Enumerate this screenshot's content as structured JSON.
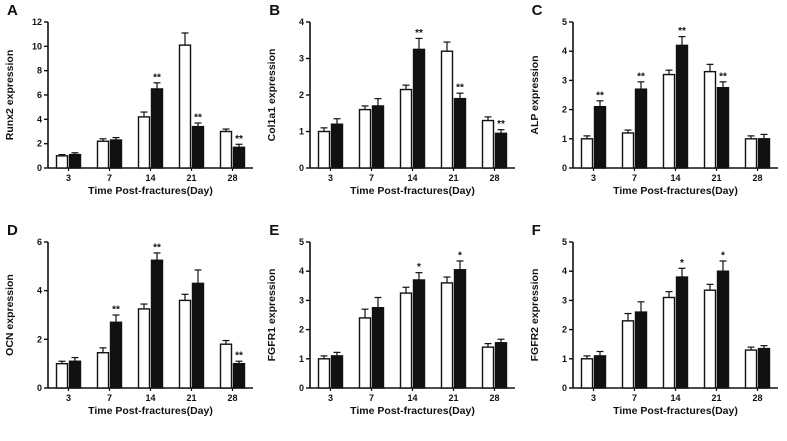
{
  "figure_meta": {
    "background": "#ffffff",
    "bar_fill_open": "#ffffff",
    "bar_fill_solid": "#111111",
    "axis_color": "#111111"
  },
  "chart_data": [
    {
      "type": "bar",
      "panel": "A",
      "ylabel": "Runx2 expression",
      "xlabel": "Time Post-fractures(Day)",
      "categories": [
        "3",
        "7",
        "14",
        "21",
        "28"
      ],
      "ylim": [
        0,
        12
      ],
      "yticks": [
        0,
        2,
        4,
        6,
        8,
        10,
        12
      ],
      "grid": false,
      "legend": "none",
      "series": [
        {
          "name": "open-bar",
          "fill": "#ffffff",
          "values": [
            1.0,
            2.2,
            4.2,
            10.1,
            3.0
          ],
          "errors": [
            0.1,
            0.2,
            0.4,
            1.0,
            0.2
          ],
          "sig": [
            "",
            "",
            "",
            "",
            ""
          ]
        },
        {
          "name": "solid-bar",
          "fill": "#111111",
          "values": [
            1.1,
            2.3,
            6.5,
            3.4,
            1.7
          ],
          "errors": [
            0.15,
            0.2,
            0.5,
            0.3,
            0.25
          ],
          "sig": [
            "",
            "",
            "**",
            "**",
            "**"
          ]
        }
      ]
    },
    {
      "type": "bar",
      "panel": "B",
      "ylabel": "Col1a1 expression",
      "xlabel": "Time Post-fractures(Day)",
      "categories": [
        "3",
        "7",
        "14",
        "21",
        "28"
      ],
      "ylim": [
        0,
        4
      ],
      "yticks": [
        0,
        1,
        2,
        3,
        4
      ],
      "grid": false,
      "legend": "none",
      "series": [
        {
          "name": "open-bar",
          "fill": "#ffffff",
          "values": [
            1.0,
            1.6,
            2.15,
            3.2,
            1.3
          ],
          "errors": [
            0.1,
            0.1,
            0.12,
            0.25,
            0.1
          ],
          "sig": [
            "",
            "",
            "",
            "",
            ""
          ]
        },
        {
          "name": "solid-bar",
          "fill": "#111111",
          "values": [
            1.2,
            1.7,
            3.25,
            1.9,
            0.95
          ],
          "errors": [
            0.15,
            0.2,
            0.3,
            0.15,
            0.1
          ],
          "sig": [
            "",
            "",
            "**",
            "**",
            "**"
          ]
        }
      ]
    },
    {
      "type": "bar",
      "panel": "C",
      "ylabel": "ALP expression",
      "xlabel": "Time Post-fractures(Day)",
      "categories": [
        "3",
        "7",
        "14",
        "21",
        "28"
      ],
      "ylim": [
        0,
        5
      ],
      "yticks": [
        0,
        1,
        2,
        3,
        4,
        5
      ],
      "grid": false,
      "legend": "none",
      "series": [
        {
          "name": "open-bar",
          "fill": "#ffffff",
          "values": [
            1.0,
            1.2,
            3.2,
            3.3,
            1.0
          ],
          "errors": [
            0.1,
            0.1,
            0.15,
            0.25,
            0.1
          ],
          "sig": [
            "",
            "",
            "",
            "",
            ""
          ]
        },
        {
          "name": "solid-bar",
          "fill": "#111111",
          "values": [
            2.1,
            2.7,
            4.2,
            2.75,
            1.0
          ],
          "errors": [
            0.2,
            0.25,
            0.3,
            0.2,
            0.15
          ],
          "sig": [
            "**",
            "**",
            "**",
            "**",
            ""
          ]
        }
      ]
    },
    {
      "type": "bar",
      "panel": "D",
      "ylabel": "OCN expression",
      "xlabel": "Time Post-fractures(Day)",
      "categories": [
        "3",
        "7",
        "14",
        "21",
        "28"
      ],
      "ylim": [
        0,
        6
      ],
      "yticks": [
        0,
        2,
        4,
        6
      ],
      "grid": false,
      "legend": "none",
      "series": [
        {
          "name": "open-bar",
          "fill": "#ffffff",
          "values": [
            1.0,
            1.45,
            3.25,
            3.6,
            1.8
          ],
          "errors": [
            0.1,
            0.2,
            0.2,
            0.25,
            0.15
          ],
          "sig": [
            "",
            "",
            "",
            "",
            ""
          ]
        },
        {
          "name": "solid-bar",
          "fill": "#111111",
          "values": [
            1.1,
            2.7,
            5.25,
            4.3,
            1.0
          ],
          "errors": [
            0.15,
            0.3,
            0.3,
            0.55,
            0.1
          ],
          "sig": [
            "",
            "**",
            "**",
            "",
            "**"
          ]
        }
      ]
    },
    {
      "type": "bar",
      "panel": "E",
      "ylabel": "FGFR1 expression",
      "xlabel": "Time Post-fractures(Day)",
      "categories": [
        "3",
        "7",
        "14",
        "21",
        "28"
      ],
      "ylim": [
        0,
        5
      ],
      "yticks": [
        0,
        1,
        2,
        3,
        4,
        5
      ],
      "grid": false,
      "legend": "none",
      "series": [
        {
          "name": "open-bar",
          "fill": "#ffffff",
          "values": [
            1.0,
            2.4,
            3.25,
            3.6,
            1.4
          ],
          "errors": [
            0.1,
            0.3,
            0.2,
            0.2,
            0.12
          ],
          "sig": [
            "",
            "",
            "",
            "",
            ""
          ]
        },
        {
          "name": "solid-bar",
          "fill": "#111111",
          "values": [
            1.1,
            2.75,
            3.7,
            4.05,
            1.55
          ],
          "errors": [
            0.12,
            0.35,
            0.25,
            0.3,
            0.12
          ],
          "sig": [
            "",
            "",
            "*",
            "*",
            ""
          ]
        }
      ]
    },
    {
      "type": "bar",
      "panel": "F",
      "ylabel": "FGFR2 expression",
      "xlabel": "Time Post-fractures(Day)",
      "categories": [
        "3",
        "7",
        "14",
        "21",
        "28"
      ],
      "ylim": [
        0,
        5
      ],
      "yticks": [
        0,
        1,
        2,
        3,
        4,
        5
      ],
      "grid": false,
      "legend": "none",
      "series": [
        {
          "name": "open-bar",
          "fill": "#ffffff",
          "values": [
            1.0,
            2.3,
            3.1,
            3.35,
            1.3
          ],
          "errors": [
            0.1,
            0.25,
            0.2,
            0.2,
            0.1
          ],
          "sig": [
            "",
            "",
            "",
            "",
            ""
          ]
        },
        {
          "name": "solid-bar",
          "fill": "#111111",
          "values": [
            1.1,
            2.6,
            3.8,
            4.0,
            1.35
          ],
          "errors": [
            0.15,
            0.35,
            0.3,
            0.35,
            0.1
          ],
          "sig": [
            "",
            "",
            "*",
            "*",
            ""
          ]
        }
      ]
    }
  ]
}
